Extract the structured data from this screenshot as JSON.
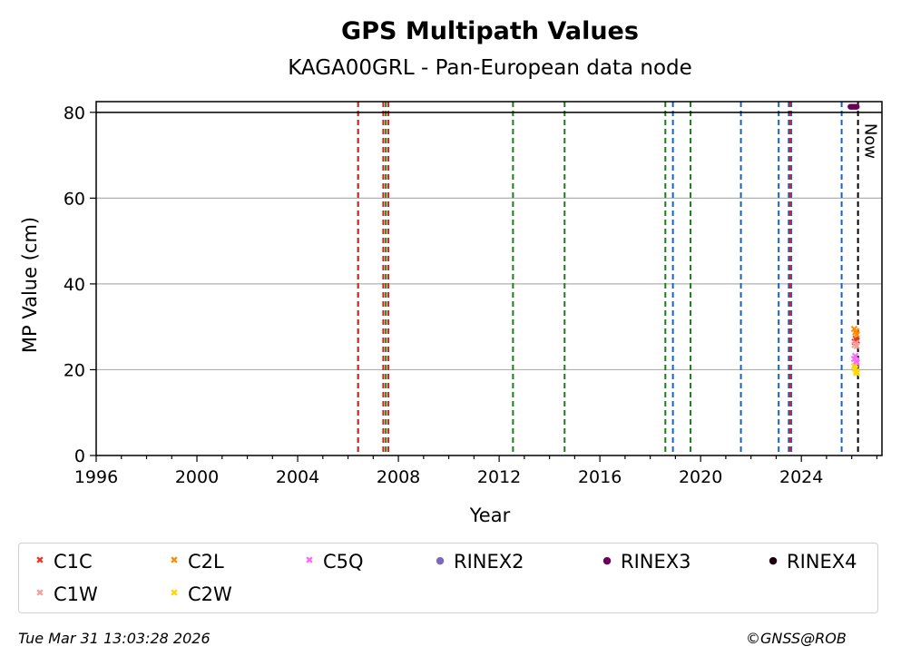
{
  "chart_data": {
    "type": "scatter",
    "title": "GPS Multipath Values",
    "subtitle": "KAGA00GRL - Pan-European data node",
    "xlabel": "Year",
    "ylabel": "MP Value (cm)",
    "xlim": [
      1996,
      2027.2
    ],
    "ylim": [
      0,
      82.5
    ],
    "xticks": [
      1996,
      2000,
      2004,
      2008,
      2012,
      2016,
      2020,
      2024
    ],
    "yticks": [
      0,
      20,
      40,
      60,
      80
    ],
    "grid": "horizontal",
    "threshold_line": 80,
    "now_label": "Now",
    "now_x": 2026.25,
    "event_lines": [
      {
        "x": 2006.4,
        "color": "#1a7f1a"
      },
      {
        "x": 2006.4,
        "color": "#e02020"
      },
      {
        "x": 2007.4,
        "color": "#1a7f1a"
      },
      {
        "x": 2007.4,
        "color": "#e02020"
      },
      {
        "x": 2007.5,
        "color": "#1a7f1a"
      },
      {
        "x": 2007.6,
        "color": "#1a7f1a"
      },
      {
        "x": 2007.6,
        "color": "#e02020"
      },
      {
        "x": 2012.55,
        "color": "#1a7f1a"
      },
      {
        "x": 2014.6,
        "color": "#1a7f1a"
      },
      {
        "x": 2018.6,
        "color": "#1a7f1a"
      },
      {
        "x": 2018.9,
        "color": "#1565c0"
      },
      {
        "x": 2019.6,
        "color": "#1a7f1a"
      },
      {
        "x": 2021.6,
        "color": "#1565c0"
      },
      {
        "x": 2023.1,
        "color": "#1565c0"
      },
      {
        "x": 2023.5,
        "color": "#1565c0"
      },
      {
        "x": 2023.6,
        "color": "#1565c0"
      },
      {
        "x": 2023.55,
        "color": "#e02020"
      },
      {
        "x": 2025.6,
        "color": "#1565c0"
      },
      {
        "x": 2026.25,
        "color": "#000000"
      }
    ],
    "series": [
      {
        "name": "C1C",
        "marker": "x",
        "color": "#e8372c",
        "x": [
          2026.12,
          2026.16,
          2026.2
        ],
        "y": [
          26.5,
          27.2,
          26.8
        ]
      },
      {
        "name": "C2L",
        "marker": "x",
        "color": "#ff8c00",
        "x": [
          2026.1,
          2026.15,
          2026.2,
          2026.18
        ],
        "y": [
          29.5,
          28.7,
          28.2,
          29.0
        ]
      },
      {
        "name": "C5Q",
        "marker": "x",
        "color": "#ff66ff",
        "x": [
          2026.1,
          2026.14,
          2026.18,
          2026.2
        ],
        "y": [
          22.5,
          23.2,
          22.0,
          21.6
        ]
      },
      {
        "name": "RINEX2",
        "marker": "dot",
        "color": "#7b68b8",
        "x": [],
        "y": []
      },
      {
        "name": "RINEX3",
        "marker": "dot",
        "color": "#6b005a",
        "x": [
          2025.95,
          2026.0,
          2026.05,
          2026.1,
          2026.15,
          2026.2
        ],
        "y": [
          81.3,
          81.3,
          81.3,
          81.3,
          81.3,
          81.3
        ]
      },
      {
        "name": "RINEX4",
        "marker": "dot",
        "color": "#1a0010",
        "x": [],
        "y": []
      },
      {
        "name": "C1W",
        "marker": "x",
        "color": "#f4a09a",
        "x": [
          2026.12,
          2026.16,
          2026.2
        ],
        "y": [
          25.8,
          26.2,
          25.5
        ]
      },
      {
        "name": "C2W",
        "marker": "x",
        "color": "#ffd700",
        "x": [
          2026.1,
          2026.14,
          2026.18,
          2026.2
        ],
        "y": [
          20.8,
          20.2,
          19.6,
          19.2
        ]
      }
    ]
  },
  "legend": [
    {
      "label": "C1C",
      "color": "#e8372c",
      "glyph": "✖"
    },
    {
      "label": "C2L",
      "color": "#ff8c00",
      "glyph": "✖"
    },
    {
      "label": "C5Q",
      "color": "#ff66ff",
      "glyph": "✖"
    },
    {
      "label": "RINEX2",
      "color": "#7b68b8",
      "glyph": "●"
    },
    {
      "label": "RINEX3",
      "color": "#6b005a",
      "glyph": "●"
    },
    {
      "label": "RINEX4",
      "color": "#1a0010",
      "glyph": "●"
    },
    {
      "label": "C1W",
      "color": "#f4a09a",
      "glyph": "✖"
    },
    {
      "label": "C2W",
      "color": "#ffd700",
      "glyph": "✖"
    }
  ],
  "footer": {
    "timestamp": "Tue Mar 31 13:03:28 2026",
    "credit": "©GNSS@ROB"
  }
}
